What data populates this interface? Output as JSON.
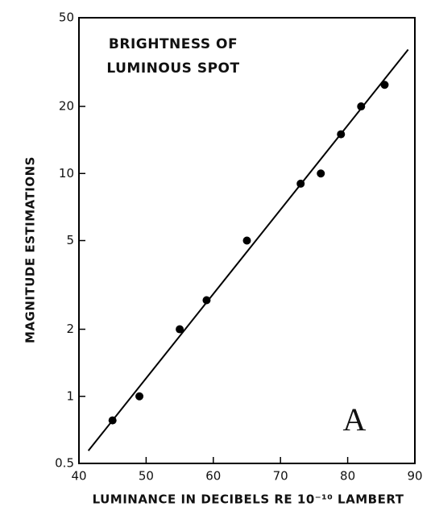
{
  "chart_data": {
    "type": "scatter",
    "annotations": [
      "BRIGHTNESS OF",
      "LUMINOUS SPOT",
      "A"
    ],
    "xlabel": "LUMINANCE IN DECIBELS RE 10⁻¹⁰ LAMBERT",
    "ylabel": "MAGNITUDE ESTIMATIONS",
    "series": [
      {
        "x": [
          45,
          49,
          55,
          59,
          65,
          73,
          76,
          79,
          82,
          85.5
        ],
        "values": [
          0.78,
          1.0,
          2.0,
          2.7,
          5.0,
          9.0,
          10,
          15,
          20,
          25
        ],
        "color": "#000000"
      }
    ],
    "fit_line": {
      "x": [
        41.4,
        89
      ],
      "values": [
        0.57,
        36
      ],
      "color": "#000000"
    },
    "xlim": [
      40,
      90
    ],
    "xticks": [
      40,
      50,
      60,
      70,
      80,
      90
    ],
    "ylim": [
      0.5,
      50
    ],
    "yticks": [
      0.5,
      1,
      2,
      5,
      10,
      20,
      50
    ],
    "ylog": true,
    "grid": false
  }
}
